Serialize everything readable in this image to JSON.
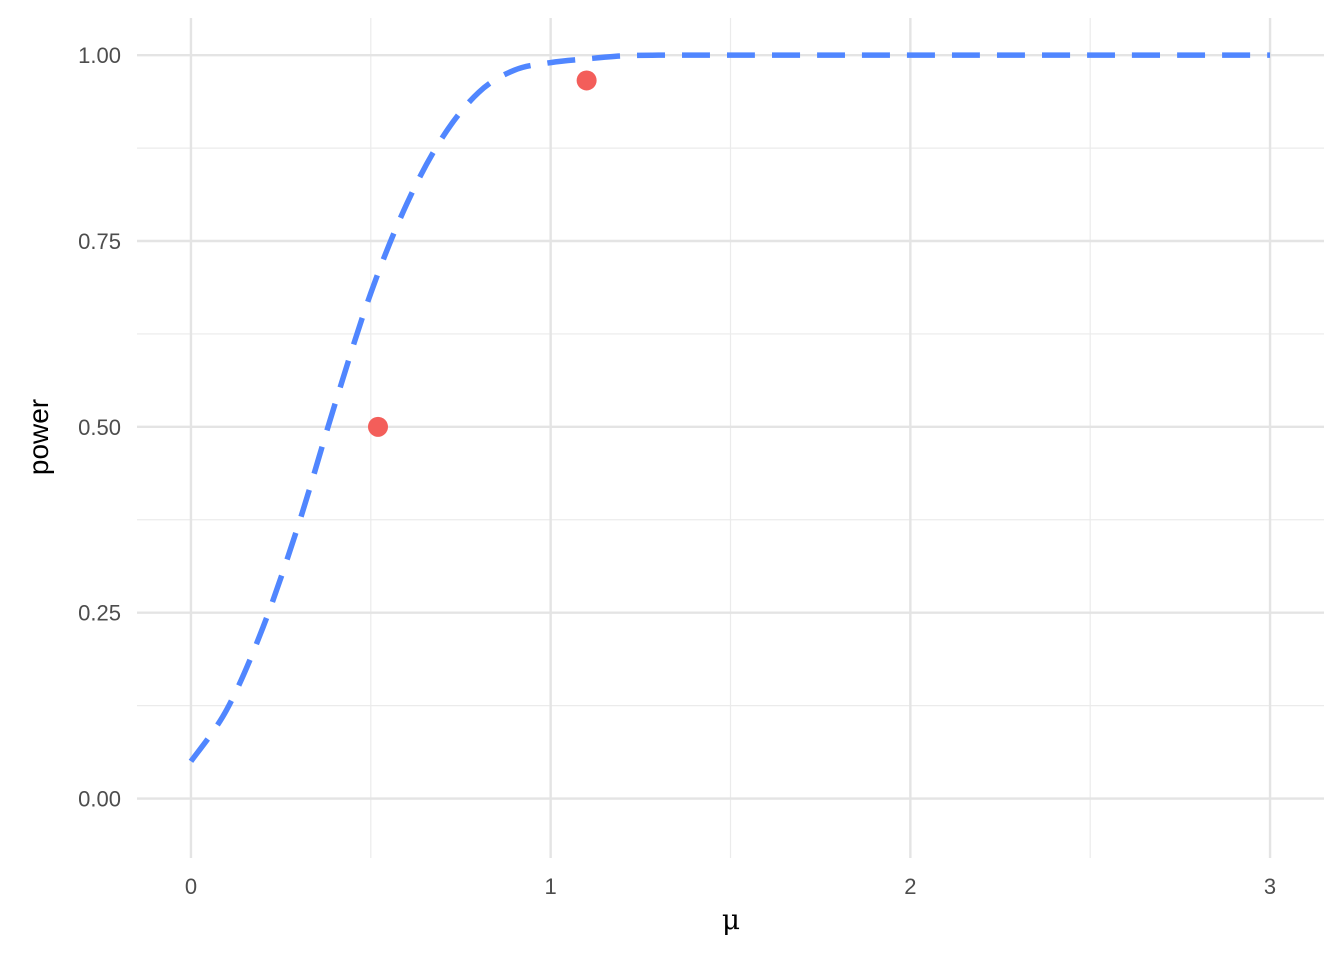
{
  "chart_data": {
    "type": "line",
    "title": "",
    "xlabel": "μ",
    "ylabel": "power",
    "xlim": [
      -0.15,
      3.15
    ],
    "ylim": [
      -0.08,
      1.05
    ],
    "x_ticks": [
      0,
      1,
      2,
      3
    ],
    "x_tick_labels": [
      "0",
      "1",
      "2",
      "3"
    ],
    "x_minor_ticks": [
      0.5,
      1.5,
      2.5
    ],
    "y_ticks": [
      0,
      0.25,
      0.5,
      0.75,
      1.0
    ],
    "y_tick_labels": [
      "0.00",
      "0.25",
      "0.50",
      "0.75",
      "1.00"
    ],
    "y_minor_ticks": [
      0.125,
      0.375,
      0.625,
      0.875
    ],
    "grid": true,
    "legend": "none",
    "series": [
      {
        "style": "dashed",
        "color": "#5086FF",
        "x": [
          0,
          0.1,
          0.2,
          0.3,
          0.4,
          0.5,
          0.6,
          0.7,
          0.8,
          0.9,
          1.0,
          1.1,
          1.2,
          1.3,
          1.4,
          1.5,
          1.75,
          2.0,
          2.5,
          3.0
        ],
        "y": [
          0.05,
          0.12,
          0.23,
          0.37,
          0.53,
          0.68,
          0.8,
          0.89,
          0.95,
          0.98,
          0.99,
          0.995,
          0.999,
          1.0,
          1.0,
          1.0,
          1.0,
          1.0,
          1.0,
          1.0
        ]
      }
    ],
    "points": [
      {
        "x": 0.52,
        "y": 0.5,
        "color": "#F35E5A"
      },
      {
        "x": 1.1,
        "y": 0.966,
        "color": "#F35E5A"
      }
    ]
  }
}
